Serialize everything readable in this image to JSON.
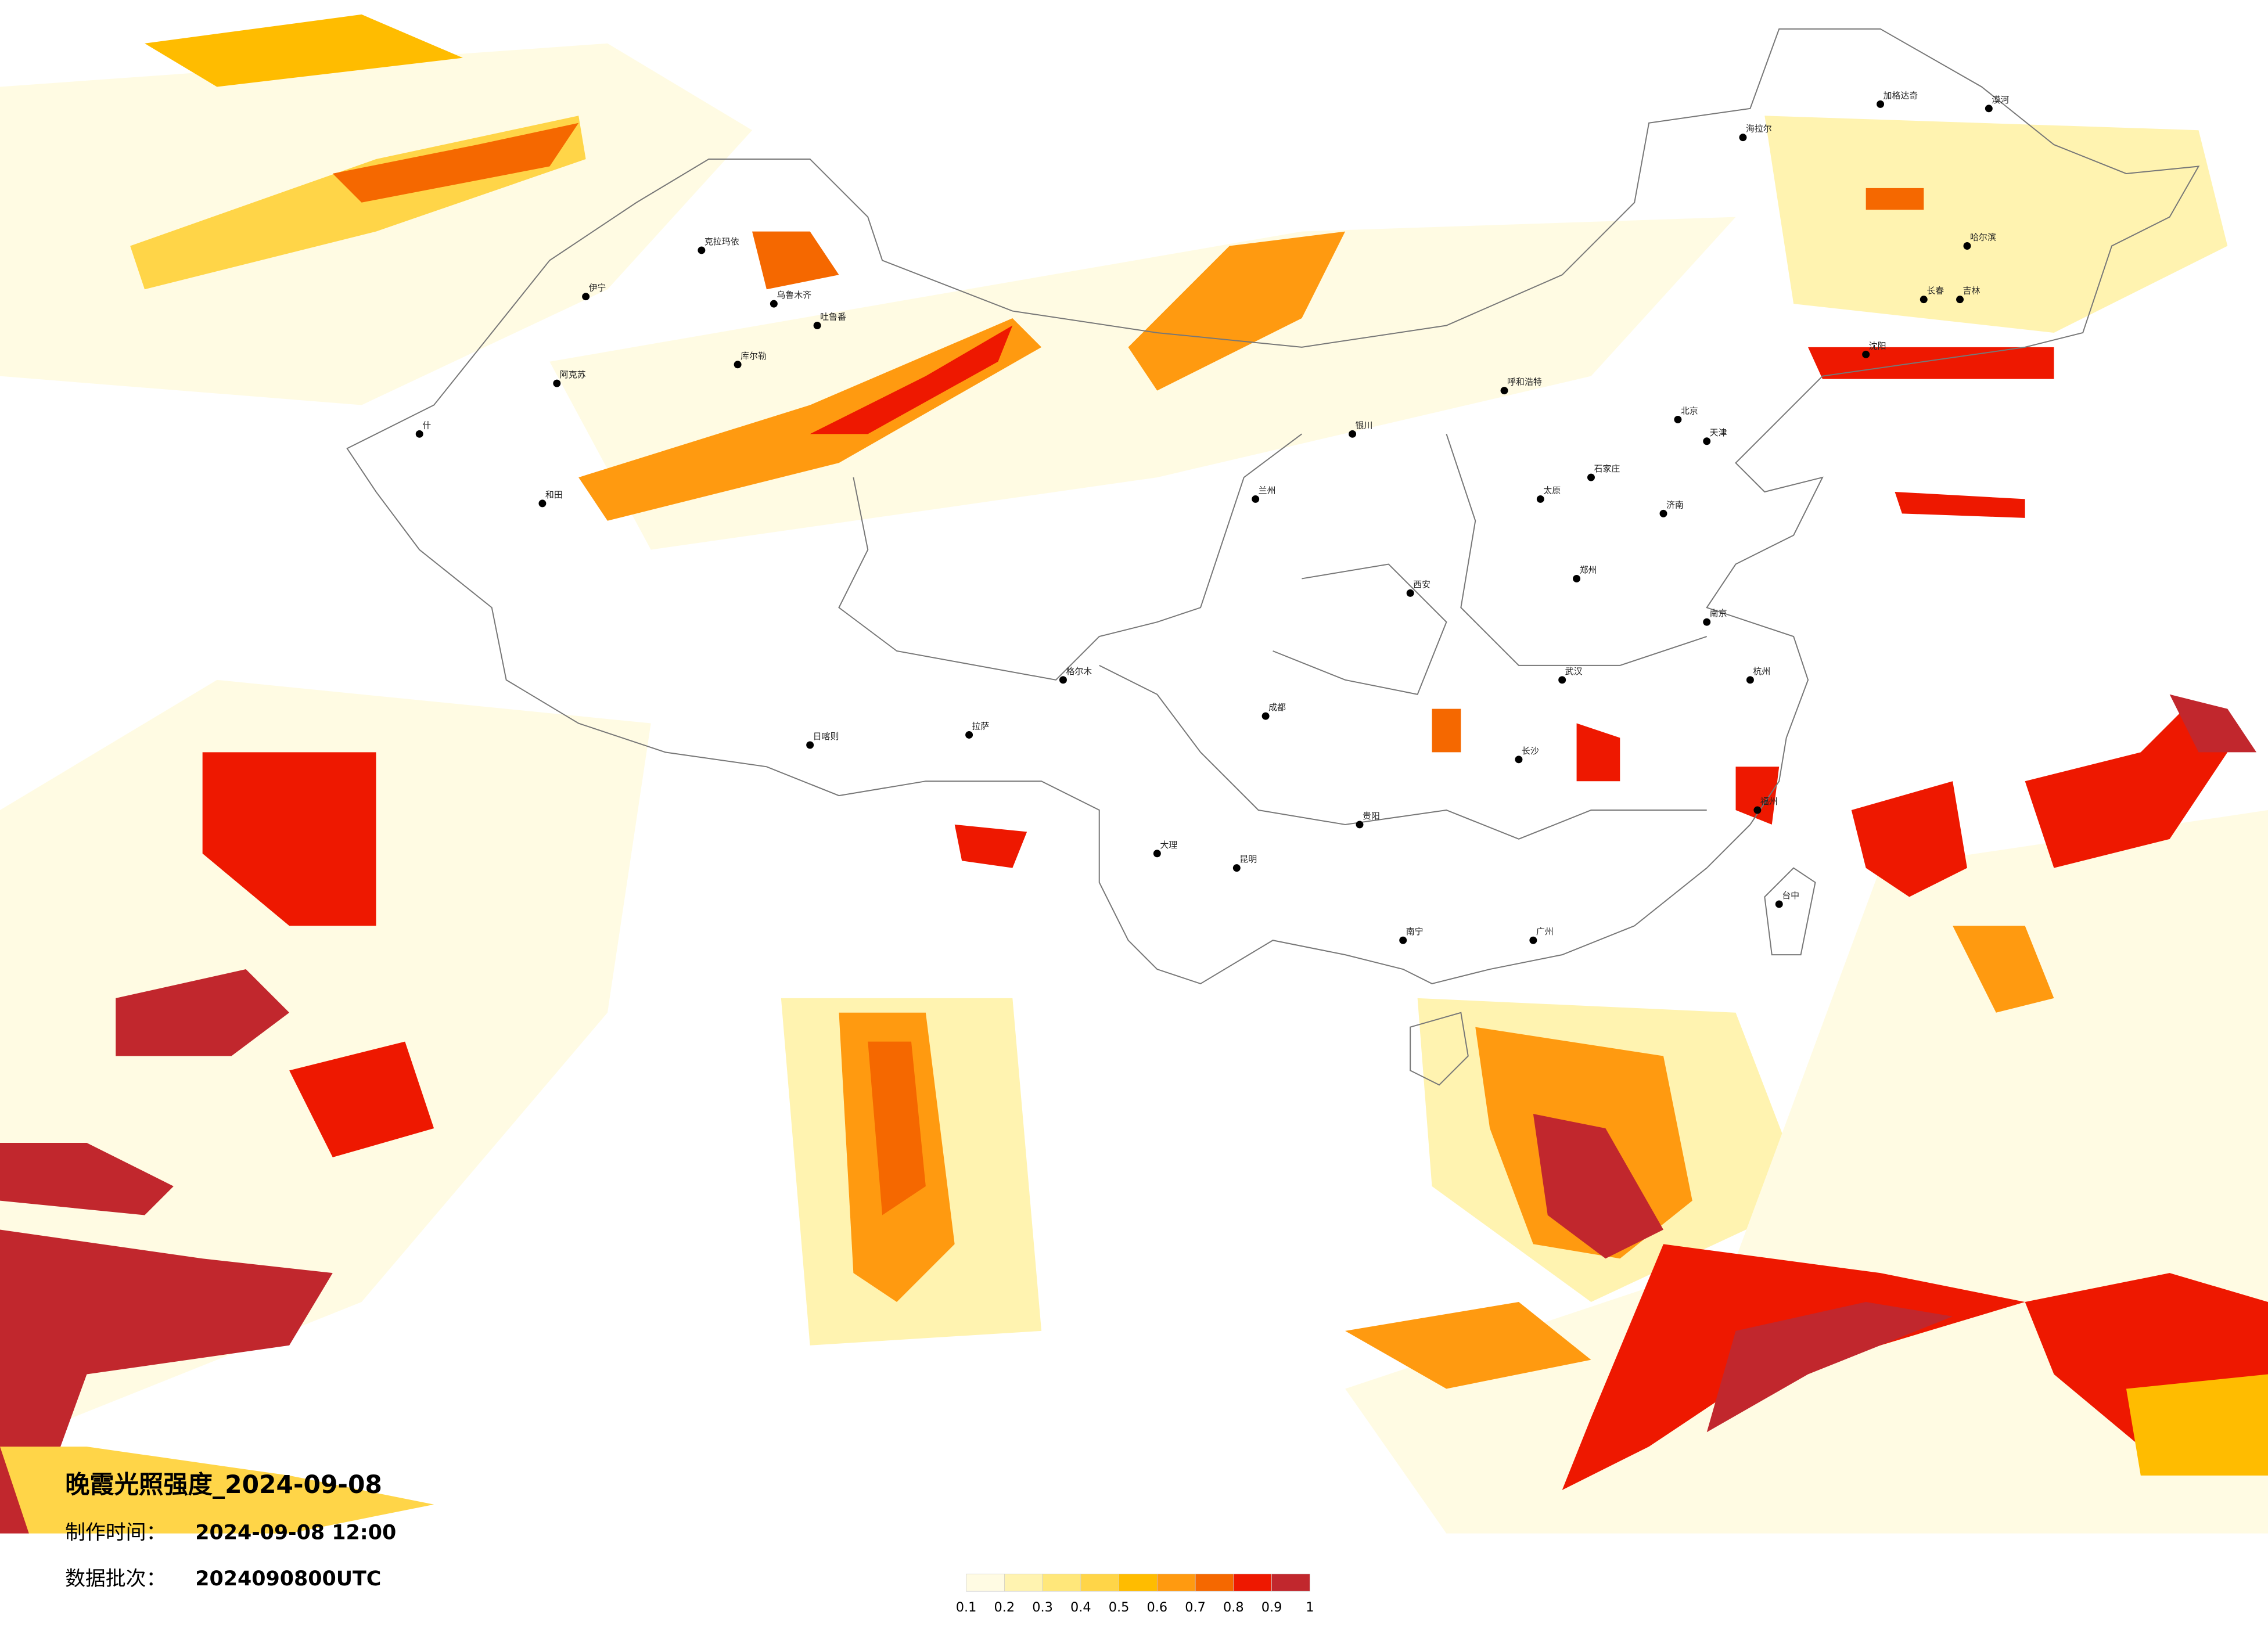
{
  "map": {
    "title": "晚霞光照强度_2024-09-08",
    "made_time_label": "制作时间：",
    "made_time": "2024-09-08 12:00",
    "batch_label": "数据批次：",
    "batch": "2024090800UTC",
    "legend": {
      "ticks": [
        0.1,
        0.2,
        0.3,
        0.4,
        0.5,
        0.6,
        0.7,
        0.8,
        0.9,
        1
      ],
      "colors": [
        "#fffbe3",
        "#fff3b0",
        "#ffe77a",
        "#ffd548",
        "#ffbc00",
        "#ff9a10",
        "#f56800",
        "#ee1800",
        "#c1272d"
      ]
    },
    "cities": [
      "漠河",
      "加格达奇",
      "海拉尔",
      "哈尔滨",
      "长春",
      "吉林",
      "沈阳",
      "北京",
      "天津",
      "石家庄",
      "太原",
      "呼和浩特",
      "济南",
      "郑州",
      "西安",
      "兰州",
      "银川",
      "乌鲁木齐",
      "克拉玛依",
      "伊宁",
      "阿克苏",
      "什",
      "和田",
      "库尔勒",
      "吐鲁番",
      "格尔木",
      "拉萨",
      "日喀则",
      "成都",
      "贵阳",
      "昆明",
      "大理",
      "南宁",
      "广州",
      "长沙",
      "武汉",
      "南京",
      "杭州",
      "福州",
      "台中"
    ]
  }
}
